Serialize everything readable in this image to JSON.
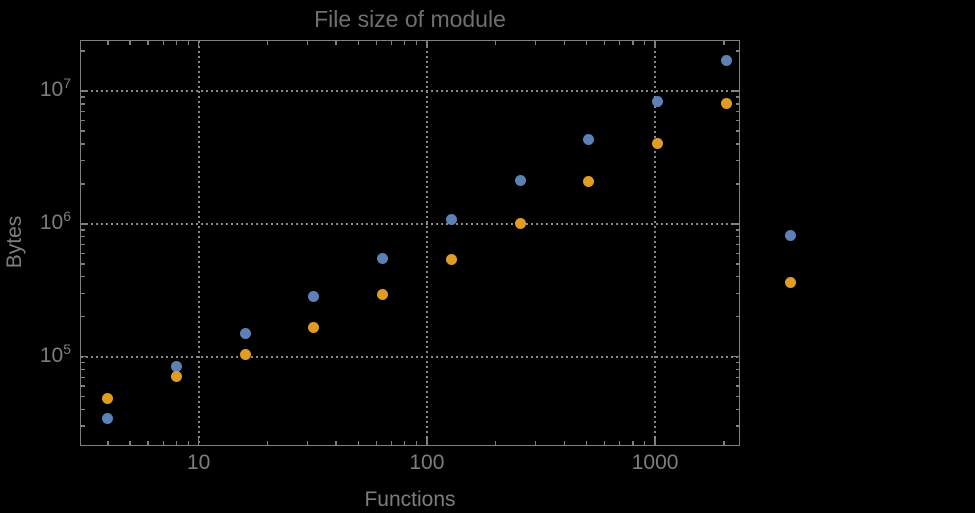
{
  "chart_data": {
    "type": "scatter",
    "title": "File size of module",
    "xlabel": "Functions",
    "ylabel": "Bytes",
    "xscale": "log",
    "yscale": "log",
    "xlim": [
      3.05,
      2343
    ],
    "ylim": [
      21830,
      23960000
    ],
    "grid": true,
    "grid_style": "dotted",
    "legend": "none",
    "x": [
      4,
      8,
      16,
      32,
      64,
      128,
      256,
      512,
      1024,
      2048,
      3900
    ],
    "series": [
      {
        "name": "blue",
        "color": "#5e81b5",
        "values": [
          34000,
          85000,
          150000,
          283000,
          551000,
          1080000,
          2140000,
          4330000,
          8420000,
          16900000,
          825000
        ]
      },
      {
        "name": "orange",
        "color": "#e19c24",
        "values": [
          48600,
          70700,
          104000,
          166000,
          295000,
          540000,
          1010000,
          2080000,
          4040000,
          8090000,
          363000
        ]
      }
    ],
    "x_ticks": [
      {
        "value": 10,
        "label": "10"
      },
      {
        "value": 100,
        "label": "100"
      },
      {
        "value": 1000,
        "label": "1000"
      }
    ],
    "y_ticks": [
      {
        "value": 100000,
        "base": "10",
        "exp": "5"
      },
      {
        "value": 1000000,
        "base": "10",
        "exp": "6"
      },
      {
        "value": 10000000,
        "base": "10",
        "exp": "7"
      }
    ]
  },
  "colors": {
    "background": "#000000",
    "frame": "#7f7f7f",
    "gridline": "#8a8a8a",
    "tick_label": "#7d7d7d",
    "title": "#6f6f6f",
    "series_blue": "#5e81b5",
    "series_orange": "#e19c24"
  }
}
